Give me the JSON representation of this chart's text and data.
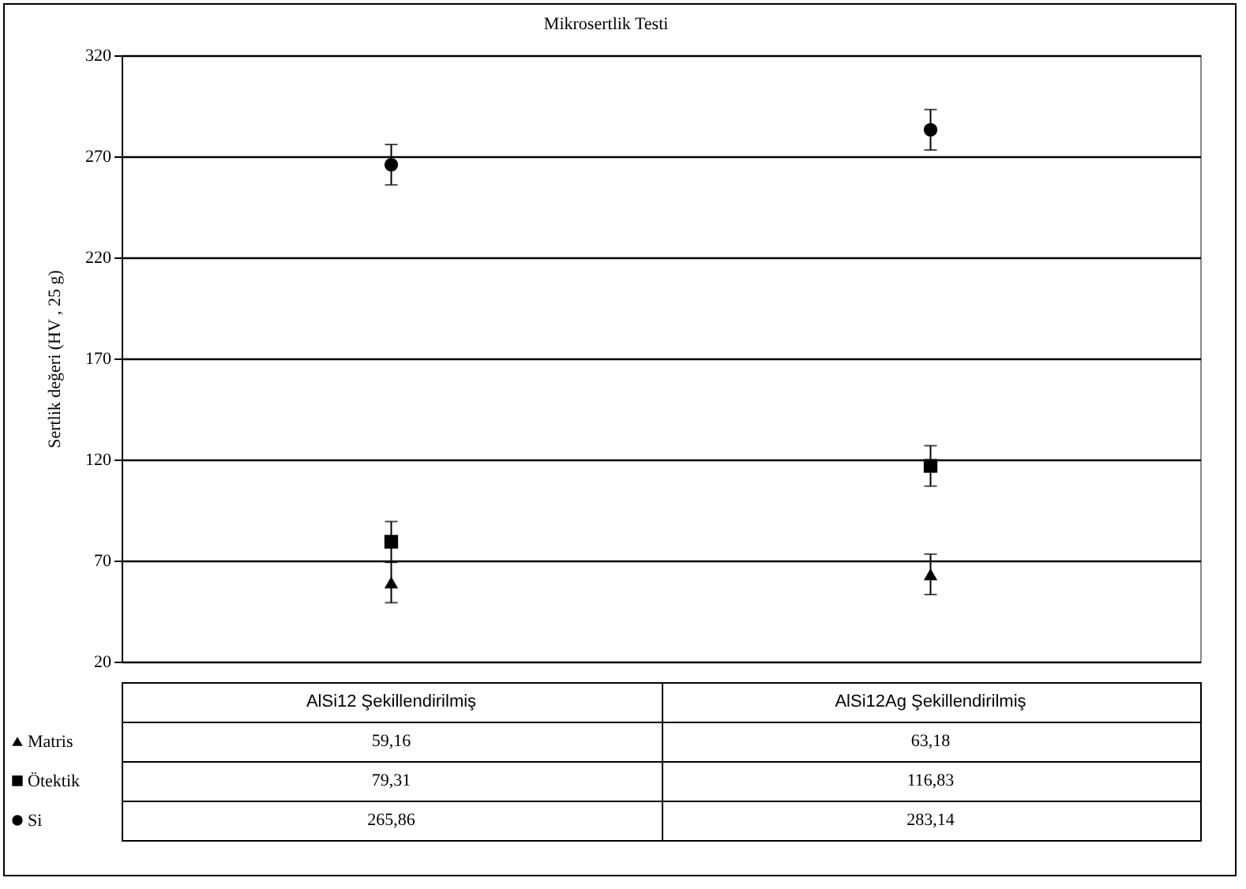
{
  "chart_data": {
    "type": "scatter",
    "title": "Mikrosertlik Testi",
    "ylabel": "Sertlik değeri (HV , 25 g)",
    "categories": [
      "AlSi12 Şekillendirilmiş",
      "AlSi12Ag Şekillendirilmiş"
    ],
    "series": [
      {
        "name": "Matris",
        "color": "#000000",
        "marker": "triangle",
        "values": [
          59.16,
          63.18
        ],
        "errors": [
          10,
          10
        ],
        "value_labels": [
          "59,16",
          "63,18"
        ]
      },
      {
        "name": "Ötektik",
        "color": "#000000",
        "marker": "square",
        "values": [
          79.31,
          116.83
        ],
        "errors": [
          10,
          10
        ],
        "value_labels": [
          "79,31",
          "116,83"
        ]
      },
      {
        "name": "Si",
        "color": "#000000",
        "marker": "circle",
        "values": [
          265.86,
          283.14
        ],
        "errors": [
          10,
          10
        ],
        "value_labels": [
          "265,86",
          "283,14"
        ]
      }
    ],
    "ylim": [
      20,
      320
    ],
    "yticks": [
      20,
      70,
      120,
      170,
      220,
      270,
      320
    ],
    "grid": "y",
    "legend": "bottom"
  }
}
